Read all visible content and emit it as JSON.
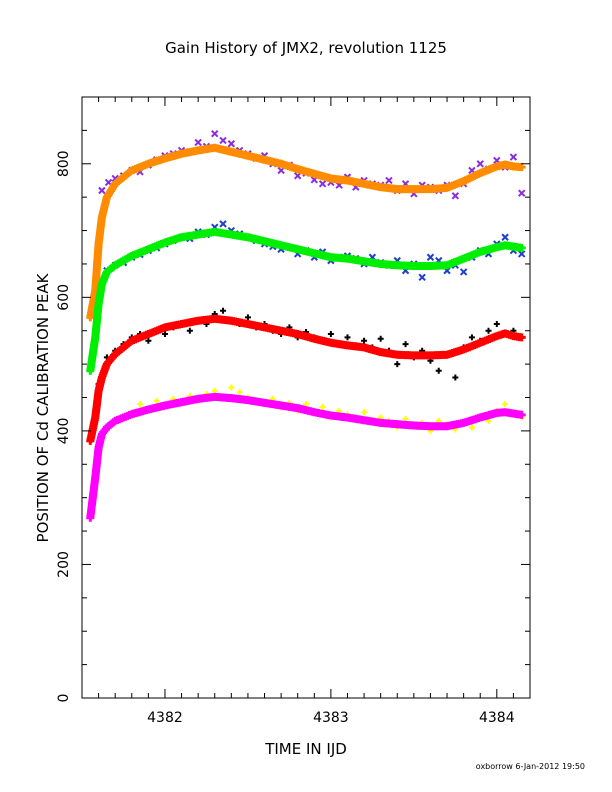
{
  "chart_data": {
    "type": "scatter",
    "title": "Gain History of JMX2, revolution 1125",
    "xlabel": "TIME IN IJD",
    "ylabel": "POSITION OF Cd CALIBRATION PEAK",
    "xlim": [
      4381.5,
      4384.2
    ],
    "ylim": [
      0,
      900
    ],
    "xticks": [
      4382,
      4383,
      4384
    ],
    "yticks": [
      0,
      200,
      400,
      600,
      800
    ],
    "credit": "oxborrow  6-Jan-2012 19:50",
    "grid": false,
    "series": [
      {
        "role": "raw",
        "marker": "x",
        "color": "#8a2be2",
        "x": [
          4381.62,
          4381.66,
          4381.7,
          4381.75,
          4381.8,
          4381.85,
          4381.9,
          4381.95,
          4382.0,
          4382.05,
          4382.1,
          4382.15,
          4382.2,
          4382.25,
          4382.3,
          4382.35,
          4382.4,
          4382.45,
          4382.5,
          4382.55,
          4382.6,
          4382.65,
          4382.7,
          4382.75,
          4382.8,
          4382.85,
          4382.9,
          4382.95,
          4383.0,
          4383.05,
          4383.1,
          4383.15,
          4383.2,
          4383.25,
          4383.3,
          4383.35,
          4383.4,
          4383.45,
          4383.5,
          4383.55,
          4383.6,
          4383.65,
          4383.7,
          4383.75,
          4383.8,
          4383.85,
          4383.9,
          4383.95,
          4384.0,
          4384.05,
          4384.1,
          4384.15
        ],
        "y": [
          760,
          772,
          778,
          782,
          790,
          788,
          798,
          806,
          812,
          815,
          820,
          818,
          832,
          826,
          845,
          835,
          830,
          820,
          815,
          808,
          812,
          800,
          790,
          798,
          782,
          786,
          776,
          770,
          772,
          768,
          780,
          765,
          775,
          770,
          768,
          775,
          760,
          770,
          755,
          768,
          765,
          760,
          768,
          752,
          770,
          790,
          800,
          792,
          805,
          795,
          810,
          756
        ]
      },
      {
        "role": "fit",
        "marker": "+",
        "color": "#ff8c00",
        "x": [
          4381.55,
          4381.58,
          4381.6,
          4381.62,
          4381.65,
          4381.7,
          4381.75,
          4381.8,
          4381.9,
          4382.0,
          4382.1,
          4382.2,
          4382.3,
          4382.4,
          4382.5,
          4382.6,
          4382.7,
          4382.8,
          4382.9,
          4383.0,
          4383.1,
          4383.2,
          4383.3,
          4383.4,
          4383.5,
          4383.6,
          4383.7,
          4383.8,
          4383.9,
          4384.0,
          4384.05,
          4384.1,
          4384.15
        ],
        "y": [
          570,
          610,
          680,
          720,
          750,
          770,
          780,
          790,
          800,
          808,
          815,
          820,
          824,
          818,
          812,
          806,
          800,
          792,
          785,
          778,
          775,
          770,
          765,
          762,
          762,
          762,
          764,
          774,
          786,
          796,
          799,
          796,
          795
        ]
      },
      {
        "role": "raw",
        "marker": "x",
        "color": "#1f3fd0",
        "x": [
          4381.65,
          4381.7,
          4381.75,
          4381.8,
          4381.85,
          4381.9,
          4381.95,
          4382.0,
          4382.05,
          4382.1,
          4382.15,
          4382.2,
          4382.25,
          4382.3,
          4382.35,
          4382.4,
          4382.45,
          4382.5,
          4382.55,
          4382.6,
          4382.65,
          4382.7,
          4382.75,
          4382.8,
          4382.85,
          4382.9,
          4382.95,
          4383.0,
          4383.05,
          4383.1,
          4383.15,
          4383.2,
          4383.25,
          4383.3,
          4383.35,
          4383.4,
          4383.45,
          4383.5,
          4383.55,
          4383.6,
          4383.65,
          4383.7,
          4383.75,
          4383.8,
          4383.85,
          4383.9,
          4383.95,
          4384.0,
          4384.05,
          4384.1,
          4384.15
        ],
        "y": [
          640,
          648,
          652,
          660,
          664,
          670,
          674,
          680,
          685,
          690,
          688,
          698,
          694,
          705,
          710,
          700,
          695,
          690,
          685,
          680,
          676,
          672,
          675,
          665,
          670,
          660,
          668,
          655,
          660,
          662,
          658,
          650,
          660,
          652,
          648,
          655,
          640,
          650,
          630,
          660,
          655,
          640,
          648,
          638,
          660,
          670,
          665,
          680,
          690,
          670,
          665
        ]
      },
      {
        "role": "fit",
        "marker": "+",
        "color": "#00ee00",
        "x": [
          4381.55,
          4381.58,
          4381.6,
          4381.62,
          4381.65,
          4381.7,
          4381.75,
          4381.8,
          4381.9,
          4382.0,
          4382.1,
          4382.2,
          4382.3,
          4382.4,
          4382.5,
          4382.6,
          4382.7,
          4382.8,
          4382.9,
          4383.0,
          4383.1,
          4383.2,
          4383.3,
          4383.4,
          4383.5,
          4383.6,
          4383.7,
          4383.8,
          4383.9,
          4384.0,
          4384.05,
          4384.1,
          4384.15
        ],
        "y": [
          490,
          540,
          590,
          620,
          638,
          648,
          655,
          662,
          672,
          682,
          690,
          694,
          698,
          694,
          690,
          684,
          678,
          672,
          666,
          660,
          658,
          654,
          650,
          648,
          647,
          647,
          648,
          658,
          668,
          675,
          678,
          676,
          674
        ]
      },
      {
        "role": "raw",
        "marker": "+",
        "color": "#000000",
        "x": [
          4381.6,
          4381.65,
          4381.7,
          4381.75,
          4381.8,
          4381.85,
          4381.9,
          4381.95,
          4382.0,
          4382.05,
          4382.1,
          4382.15,
          4382.2,
          4382.25,
          4382.3,
          4382.35,
          4382.4,
          4382.45,
          4382.5,
          4382.55,
          4382.6,
          4382.65,
          4382.7,
          4382.75,
          4382.8,
          4382.85,
          4382.9,
          4382.95,
          4383.0,
          4383.05,
          4383.1,
          4383.15,
          4383.2,
          4383.25,
          4383.3,
          4383.35,
          4383.4,
          4383.45,
          4383.5,
          4383.55,
          4383.6,
          4383.65,
          4383.7,
          4383.75,
          4383.8,
          4383.85,
          4383.9,
          4383.95,
          4384.0,
          4384.05,
          4384.1,
          4384.15
        ],
        "y": [
          470,
          510,
          520,
          530,
          540,
          545,
          535,
          550,
          545,
          555,
          560,
          550,
          565,
          560,
          575,
          580,
          565,
          560,
          570,
          555,
          560,
          550,
          545,
          555,
          540,
          548,
          540,
          535,
          545,
          530,
          540,
          528,
          535,
          525,
          538,
          520,
          500,
          530,
          510,
          520,
          505,
          490,
          515,
          480,
          525,
          540,
          535,
          550,
          560,
          545,
          550,
          540
        ]
      },
      {
        "role": "fit",
        "marker": "+",
        "color": "#ff0000",
        "x": [
          4381.55,
          4381.58,
          4381.6,
          4381.62,
          4381.65,
          4381.7,
          4381.75,
          4381.8,
          4381.9,
          4382.0,
          4382.1,
          4382.2,
          4382.3,
          4382.4,
          4382.5,
          4382.6,
          4382.7,
          4382.8,
          4382.9,
          4383.0,
          4383.1,
          4383.2,
          4383.3,
          4383.4,
          4383.5,
          4383.6,
          4383.7,
          4383.8,
          4383.9,
          4384.0,
          4384.05,
          4384.1,
          4384.15
        ],
        "y": [
          385,
          420,
          460,
          480,
          500,
          515,
          525,
          535,
          545,
          555,
          560,
          565,
          568,
          565,
          560,
          555,
          550,
          545,
          538,
          532,
          528,
          525,
          518,
          514,
          513,
          513,
          514,
          522,
          532,
          542,
          546,
          542,
          540
        ]
      },
      {
        "role": "raw",
        "marker": "+",
        "color": "#ffff00",
        "x": [
          4381.65,
          4381.7,
          4381.75,
          4381.8,
          4381.85,
          4381.9,
          4381.95,
          4382.0,
          4382.05,
          4382.1,
          4382.15,
          4382.2,
          4382.25,
          4382.3,
          4382.35,
          4382.4,
          4382.45,
          4382.5,
          4382.55,
          4382.6,
          4382.65,
          4382.7,
          4382.75,
          4382.8,
          4382.85,
          4382.9,
          4382.95,
          4383.0,
          4383.05,
          4383.1,
          4383.15,
          4383.2,
          4383.25,
          4383.3,
          4383.35,
          4383.4,
          4383.45,
          4383.5,
          4383.55,
          4383.6,
          4383.65,
          4383.7,
          4383.75,
          4383.8,
          4383.85,
          4383.9,
          4383.95,
          4384.0,
          4384.05,
          4384.1,
          4384.15
        ],
        "y": [
          405,
          415,
          420,
          428,
          440,
          432,
          445,
          438,
          448,
          442,
          452,
          448,
          455,
          460,
          452,
          465,
          458,
          450,
          445,
          440,
          448,
          435,
          442,
          430,
          440,
          428,
          436,
          420,
          430,
          425,
          418,
          428,
          412,
          420,
          415,
          405,
          418,
          410,
          412,
          400,
          415,
          410,
          402,
          412,
          405,
          420,
          415,
          430,
          440,
          425,
          420
        ]
      },
      {
        "role": "fit",
        "marker": "+",
        "color": "#ff00ff",
        "x": [
          4381.55,
          4381.58,
          4381.6,
          4381.62,
          4381.65,
          4381.7,
          4381.75,
          4381.8,
          4381.9,
          4382.0,
          4382.1,
          4382.2,
          4382.3,
          4382.4,
          4382.5,
          4382.6,
          4382.7,
          4382.8,
          4382.9,
          4383.0,
          4383.1,
          4383.2,
          4383.3,
          4383.4,
          4383.5,
          4383.6,
          4383.7,
          4383.8,
          4383.9,
          4384.0,
          4384.05,
          4384.1,
          4384.15
        ],
        "y": [
          270,
          330,
          375,
          395,
          405,
          415,
          420,
          425,
          432,
          438,
          443,
          448,
          451,
          449,
          446,
          442,
          438,
          434,
          428,
          423,
          420,
          416,
          412,
          410,
          408,
          407,
          407,
          412,
          420,
          427,
          428,
          426,
          424
        ]
      }
    ]
  }
}
